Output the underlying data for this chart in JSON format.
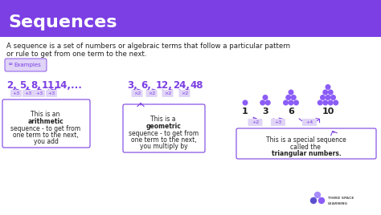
{
  "title": "Sequences",
  "header_bg": "#7B3FE4",
  "header_text_color": "#FFFFFF",
  "body_bg": "#FFFFFF",
  "body_text_color": "#222222",
  "purple": "#7B3FE4",
  "light_purple_bg": "#E0D4F7",
  "desc_text1": "A sequence is a set of numbers or algebraic terms that follow a particular pattern",
  "desc_text2": "or rule to get from one term to the next.",
  "examples_label": "  Examples",
  "arith_seq_nums": [
    "2,",
    "5,",
    "8,",
    "11,",
    "14,..."
  ],
  "arith_diffs": [
    "+3",
    "+3",
    "+3",
    "+3"
  ],
  "geom_seq_nums": [
    "3,",
    "6,",
    "12,",
    "24,",
    "48"
  ],
  "geom_diffs": [
    "×2",
    "×2",
    "×2",
    "×2"
  ],
  "tri_seq": [
    "1",
    "3",
    "6",
    "10"
  ],
  "tri_diffs": [
    "+2",
    "+3",
    "+4"
  ],
  "dot_color": "#8B5CF6",
  "arrow_color": "#8B5CF6"
}
